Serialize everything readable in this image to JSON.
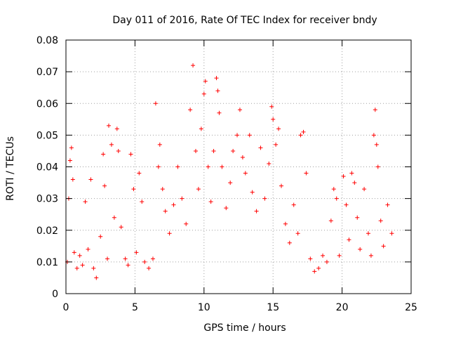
{
  "chart_data": {
    "type": "scatter",
    "title": "Day 011 of 2016, Rate Of TEC Index for receiver bndy",
    "xlabel": "GPS time / hours",
    "ylabel": "ROTI / TECUs",
    "xlim": [
      0,
      25
    ],
    "ylim": [
      0,
      0.08
    ],
    "x_ticks": [
      0,
      5,
      10,
      15,
      20,
      25
    ],
    "y_ticks": [
      0,
      0.01,
      0.02,
      0.03,
      0.04,
      0.05,
      0.06,
      0.07,
      0.08
    ],
    "x_tick_labels": [
      "0",
      "5",
      "10",
      "15",
      "20",
      "25"
    ],
    "y_tick_labels": [
      "0",
      "0.01",
      "0.02",
      "0.03",
      "0.04",
      "0.05",
      "0.06",
      "0.07",
      "0.08"
    ],
    "grid": true,
    "marker": "+",
    "color": "#ff0000",
    "series": [
      {
        "name": "ROTI",
        "points": [
          [
            0.1,
            0.01
          ],
          [
            0.2,
            0.03
          ],
          [
            0.3,
            0.042
          ],
          [
            0.4,
            0.046
          ],
          [
            0.5,
            0.036
          ],
          [
            0.6,
            0.013
          ],
          [
            0.8,
            0.008
          ],
          [
            1.0,
            0.012
          ],
          [
            1.2,
            0.009
          ],
          [
            1.4,
            0.029
          ],
          [
            1.6,
            0.014
          ],
          [
            1.8,
            0.036
          ],
          [
            2.0,
            0.008
          ],
          [
            2.2,
            0.005
          ],
          [
            2.5,
            0.018
          ],
          [
            2.7,
            0.044
          ],
          [
            2.8,
            0.034
          ],
          [
            3.0,
            0.011
          ],
          [
            3.1,
            0.053
          ],
          [
            3.3,
            0.047
          ],
          [
            3.5,
            0.024
          ],
          [
            3.7,
            0.052
          ],
          [
            3.8,
            0.045
          ],
          [
            4.0,
            0.021
          ],
          [
            4.3,
            0.011
          ],
          [
            4.5,
            0.009
          ],
          [
            4.7,
            0.044
          ],
          [
            4.9,
            0.033
          ],
          [
            5.1,
            0.013
          ],
          [
            5.3,
            0.038
          ],
          [
            5.5,
            0.029
          ],
          [
            5.7,
            0.01
          ],
          [
            6.0,
            0.008
          ],
          [
            6.3,
            0.011
          ],
          [
            6.5,
            0.06
          ],
          [
            6.7,
            0.04
          ],
          [
            6.8,
            0.047
          ],
          [
            7.0,
            0.033
          ],
          [
            7.2,
            0.026
          ],
          [
            7.5,
            0.019
          ],
          [
            7.8,
            0.028
          ],
          [
            8.1,
            0.04
          ],
          [
            8.4,
            0.03
          ],
          [
            8.7,
            0.022
          ],
          [
            9.0,
            0.058
          ],
          [
            9.2,
            0.072
          ],
          [
            9.4,
            0.045
          ],
          [
            9.6,
            0.033
          ],
          [
            9.8,
            0.052
          ],
          [
            10.0,
            0.063
          ],
          [
            10.1,
            0.067
          ],
          [
            10.3,
            0.04
          ],
          [
            10.5,
            0.029
          ],
          [
            10.7,
            0.045
          ],
          [
            10.9,
            0.068
          ],
          [
            11.0,
            0.064
          ],
          [
            11.1,
            0.057
          ],
          [
            11.3,
            0.04
          ],
          [
            11.6,
            0.027
          ],
          [
            11.9,
            0.035
          ],
          [
            12.1,
            0.045
          ],
          [
            12.4,
            0.05
          ],
          [
            12.6,
            0.058
          ],
          [
            12.8,
            0.043
          ],
          [
            13.0,
            0.038
          ],
          [
            13.3,
            0.05
          ],
          [
            13.5,
            0.032
          ],
          [
            13.8,
            0.026
          ],
          [
            14.1,
            0.046
          ],
          [
            14.4,
            0.03
          ],
          [
            14.7,
            0.041
          ],
          [
            14.9,
            0.059
          ],
          [
            15.0,
            0.055
          ],
          [
            15.2,
            0.047
          ],
          [
            15.4,
            0.052
          ],
          [
            15.6,
            0.034
          ],
          [
            15.9,
            0.022
          ],
          [
            16.2,
            0.016
          ],
          [
            16.5,
            0.028
          ],
          [
            16.8,
            0.019
          ],
          [
            17.0,
            0.05
          ],
          [
            17.2,
            0.051
          ],
          [
            17.4,
            0.038
          ],
          [
            17.7,
            0.011
          ],
          [
            18.0,
            0.007
          ],
          [
            18.3,
            0.008
          ],
          [
            18.6,
            0.012
          ],
          [
            18.9,
            0.01
          ],
          [
            19.2,
            0.023
          ],
          [
            19.4,
            0.033
          ],
          [
            19.6,
            0.03
          ],
          [
            19.8,
            0.012
          ],
          [
            20.1,
            0.037
          ],
          [
            20.3,
            0.028
          ],
          [
            20.5,
            0.017
          ],
          [
            20.7,
            0.038
          ],
          [
            20.9,
            0.035
          ],
          [
            21.1,
            0.024
          ],
          [
            21.3,
            0.014
          ],
          [
            21.6,
            0.033
          ],
          [
            21.9,
            0.019
          ],
          [
            22.1,
            0.012
          ],
          [
            22.3,
            0.05
          ],
          [
            22.4,
            0.058
          ],
          [
            22.5,
            0.047
          ],
          [
            22.6,
            0.04
          ],
          [
            22.8,
            0.023
          ],
          [
            23.0,
            0.015
          ],
          [
            23.3,
            0.028
          ],
          [
            23.6,
            0.019
          ]
        ]
      }
    ]
  }
}
